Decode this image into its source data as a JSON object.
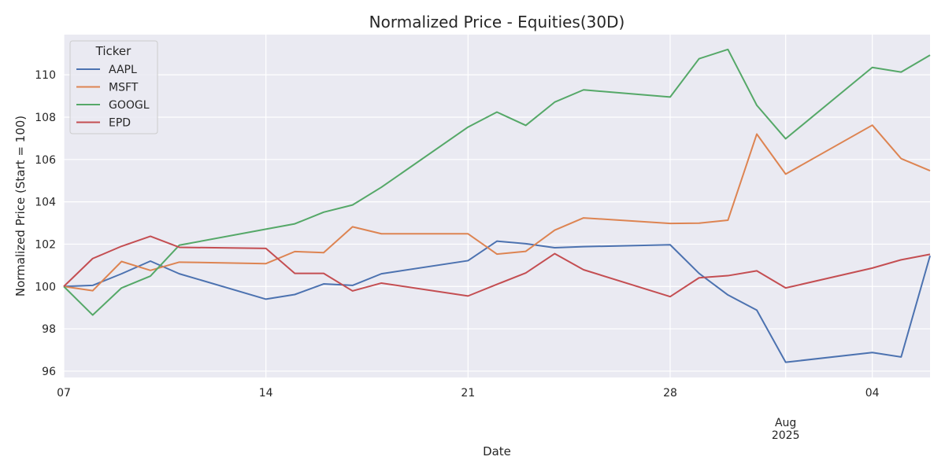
{
  "chart_data": {
    "type": "line",
    "title": "Normalized Price - Equities(30D)",
    "xlabel": "Date",
    "ylabel": "Normalized Price (Start = 100)",
    "ylim": [
      95.7,
      111.9
    ],
    "yticks": [
      96,
      98,
      100,
      102,
      104,
      106,
      108,
      110
    ],
    "x": [
      "2025-07-07",
      "2025-07-08",
      "2025-07-09",
      "2025-07-10",
      "2025-07-11",
      "2025-07-14",
      "2025-07-15",
      "2025-07-16",
      "2025-07-17",
      "2025-07-18",
      "2025-07-21",
      "2025-07-22",
      "2025-07-23",
      "2025-07-24",
      "2025-07-25",
      "2025-07-28",
      "2025-07-29",
      "2025-07-30",
      "2025-07-31",
      "2025-08-01",
      "2025-08-04",
      "2025-08-05",
      "2025-08-06"
    ],
    "xticks": [
      {
        "date": "2025-07-07",
        "label": "07",
        "sublabel": ""
      },
      {
        "date": "2025-07-14",
        "label": "14",
        "sublabel": ""
      },
      {
        "date": "2025-07-21",
        "label": "21",
        "sublabel": ""
      },
      {
        "date": "2025-07-28",
        "label": "28",
        "sublabel": ""
      },
      {
        "date": "2025-08-01",
        "label": "Aug",
        "sublabel": "2025"
      },
      {
        "date": "2025-08-04",
        "label": "04",
        "sublabel": ""
      }
    ],
    "grid": true,
    "legend": {
      "title": "Ticker",
      "placement": "top-left"
    },
    "series": [
      {
        "name": "AAPL",
        "color": "#4c72b0",
        "values": [
          100.0,
          100.05,
          100.6,
          101.2,
          100.6,
          99.4,
          99.62,
          100.12,
          100.05,
          100.6,
          101.22,
          102.14,
          102.02,
          101.83,
          101.88,
          101.97,
          100.62,
          99.6,
          98.88,
          96.42,
          96.88,
          96.67,
          101.45
        ]
      },
      {
        "name": "MSFT",
        "color": "#dd8452",
        "values": [
          100.0,
          99.8,
          101.18,
          100.76,
          101.15,
          101.08,
          101.65,
          101.6,
          102.82,
          102.49,
          102.49,
          101.53,
          101.66,
          102.66,
          103.24,
          102.98,
          102.99,
          103.13,
          107.2,
          105.31,
          107.62,
          106.04,
          105.47
        ]
      },
      {
        "name": "GOOGL",
        "color": "#55a868",
        "values": [
          100.0,
          98.65,
          99.93,
          100.49,
          101.95,
          102.71,
          102.96,
          103.51,
          103.85,
          104.69,
          107.53,
          108.24,
          107.61,
          108.71,
          109.29,
          108.95,
          110.76,
          111.2,
          108.56,
          106.98,
          110.35,
          110.13,
          110.93
        ]
      },
      {
        "name": "EPD",
        "color": "#c44e52",
        "values": [
          100.0,
          101.32,
          101.9,
          102.37,
          101.85,
          101.8,
          100.62,
          100.62,
          99.79,
          100.16,
          99.55,
          100.1,
          100.64,
          101.55,
          100.79,
          99.52,
          100.41,
          100.51,
          100.74,
          99.93,
          100.87,
          101.26,
          101.52
        ]
      }
    ]
  }
}
